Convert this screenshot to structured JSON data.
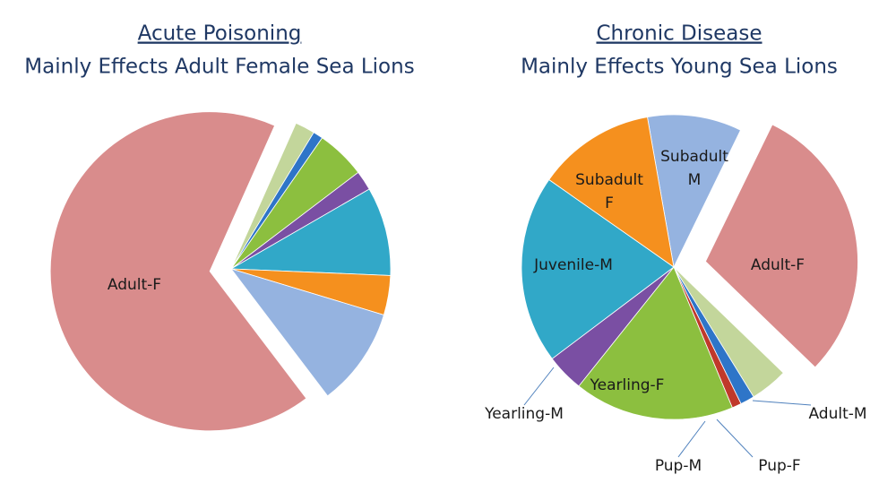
{
  "chart_data": [
    {
      "type": "pie",
      "title": "Acute Poisoning",
      "subtitle": "Mainly Effects Adult Female Sea Lions",
      "categories": [
        null,
        null,
        null,
        null,
        null,
        null,
        null,
        "Adult-F"
      ],
      "values": [
        2,
        1,
        5,
        2,
        9,
        4,
        10,
        67
      ],
      "colors": [
        "#c3d69b",
        "#2e75c8",
        "#8cbf3f",
        "#7a4fa3",
        "#31a8c8",
        "#f5901e",
        "#95b3e0",
        "#d98c8c"
      ],
      "exploded": [
        false,
        false,
        false,
        false,
        false,
        false,
        false,
        true
      ]
    },
    {
      "type": "pie",
      "title": "Chronic Disease",
      "subtitle": "Mainly Effects Young Sea Lions",
      "categories": [
        "Subadult M",
        "Adult-F",
        "Adult-M",
        "Pup-F",
        "Pup-M",
        "Yearling-F",
        "Yearling-M",
        "Juvenile-M",
        "Subadult F"
      ],
      "values": [
        10,
        30,
        4,
        1.5,
        1,
        17,
        4,
        20,
        12.5
      ],
      "colors": [
        "#95b3e0",
        "#d98c8c",
        "#c3d69b",
        "#2e75c8",
        "#c0392b",
        "#8cbf3f",
        "#7a4fa3",
        "#31a8c8",
        "#f5901e"
      ],
      "exploded": [
        false,
        true,
        false,
        false,
        false,
        false,
        false,
        false,
        false
      ]
    }
  ]
}
